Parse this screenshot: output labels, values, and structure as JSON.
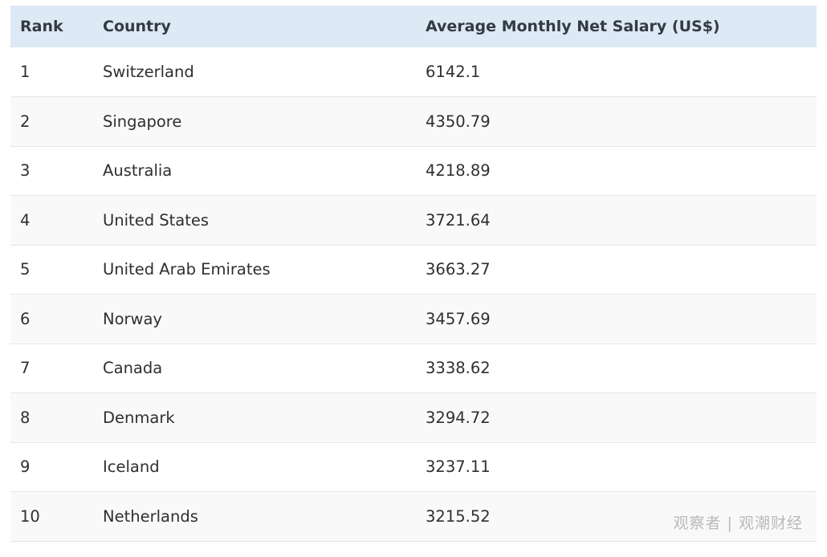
{
  "table": {
    "headers": {
      "rank": "Rank",
      "country": "Country",
      "salary": "Average Monthly Net Salary (US$)"
    },
    "rows": [
      {
        "rank": "1",
        "country": "Switzerland",
        "salary": "6142.1"
      },
      {
        "rank": "2",
        "country": "Singapore",
        "salary": "4350.79"
      },
      {
        "rank": "3",
        "country": "Australia",
        "salary": "4218.89"
      },
      {
        "rank": "4",
        "country": "United States",
        "salary": "3721.64"
      },
      {
        "rank": "5",
        "country": "United Arab Emirates",
        "salary": "3663.27"
      },
      {
        "rank": "6",
        "country": "Norway",
        "salary": "3457.69"
      },
      {
        "rank": "7",
        "country": "Canada",
        "salary": "3338.62"
      },
      {
        "rank": "8",
        "country": "Denmark",
        "salary": "3294.72"
      },
      {
        "rank": "9",
        "country": "Iceland",
        "salary": "3237.11"
      },
      {
        "rank": "10",
        "country": "Netherlands",
        "salary": "3215.52"
      }
    ]
  },
  "watermark": {
    "text": "观察者 | 观潮财经"
  },
  "colors": {
    "header_bg": "#dde9f4",
    "row_alt_bg": "#f9f9f9",
    "row_border": "#e6e6e6",
    "watermark": "#b9b9b9"
  }
}
